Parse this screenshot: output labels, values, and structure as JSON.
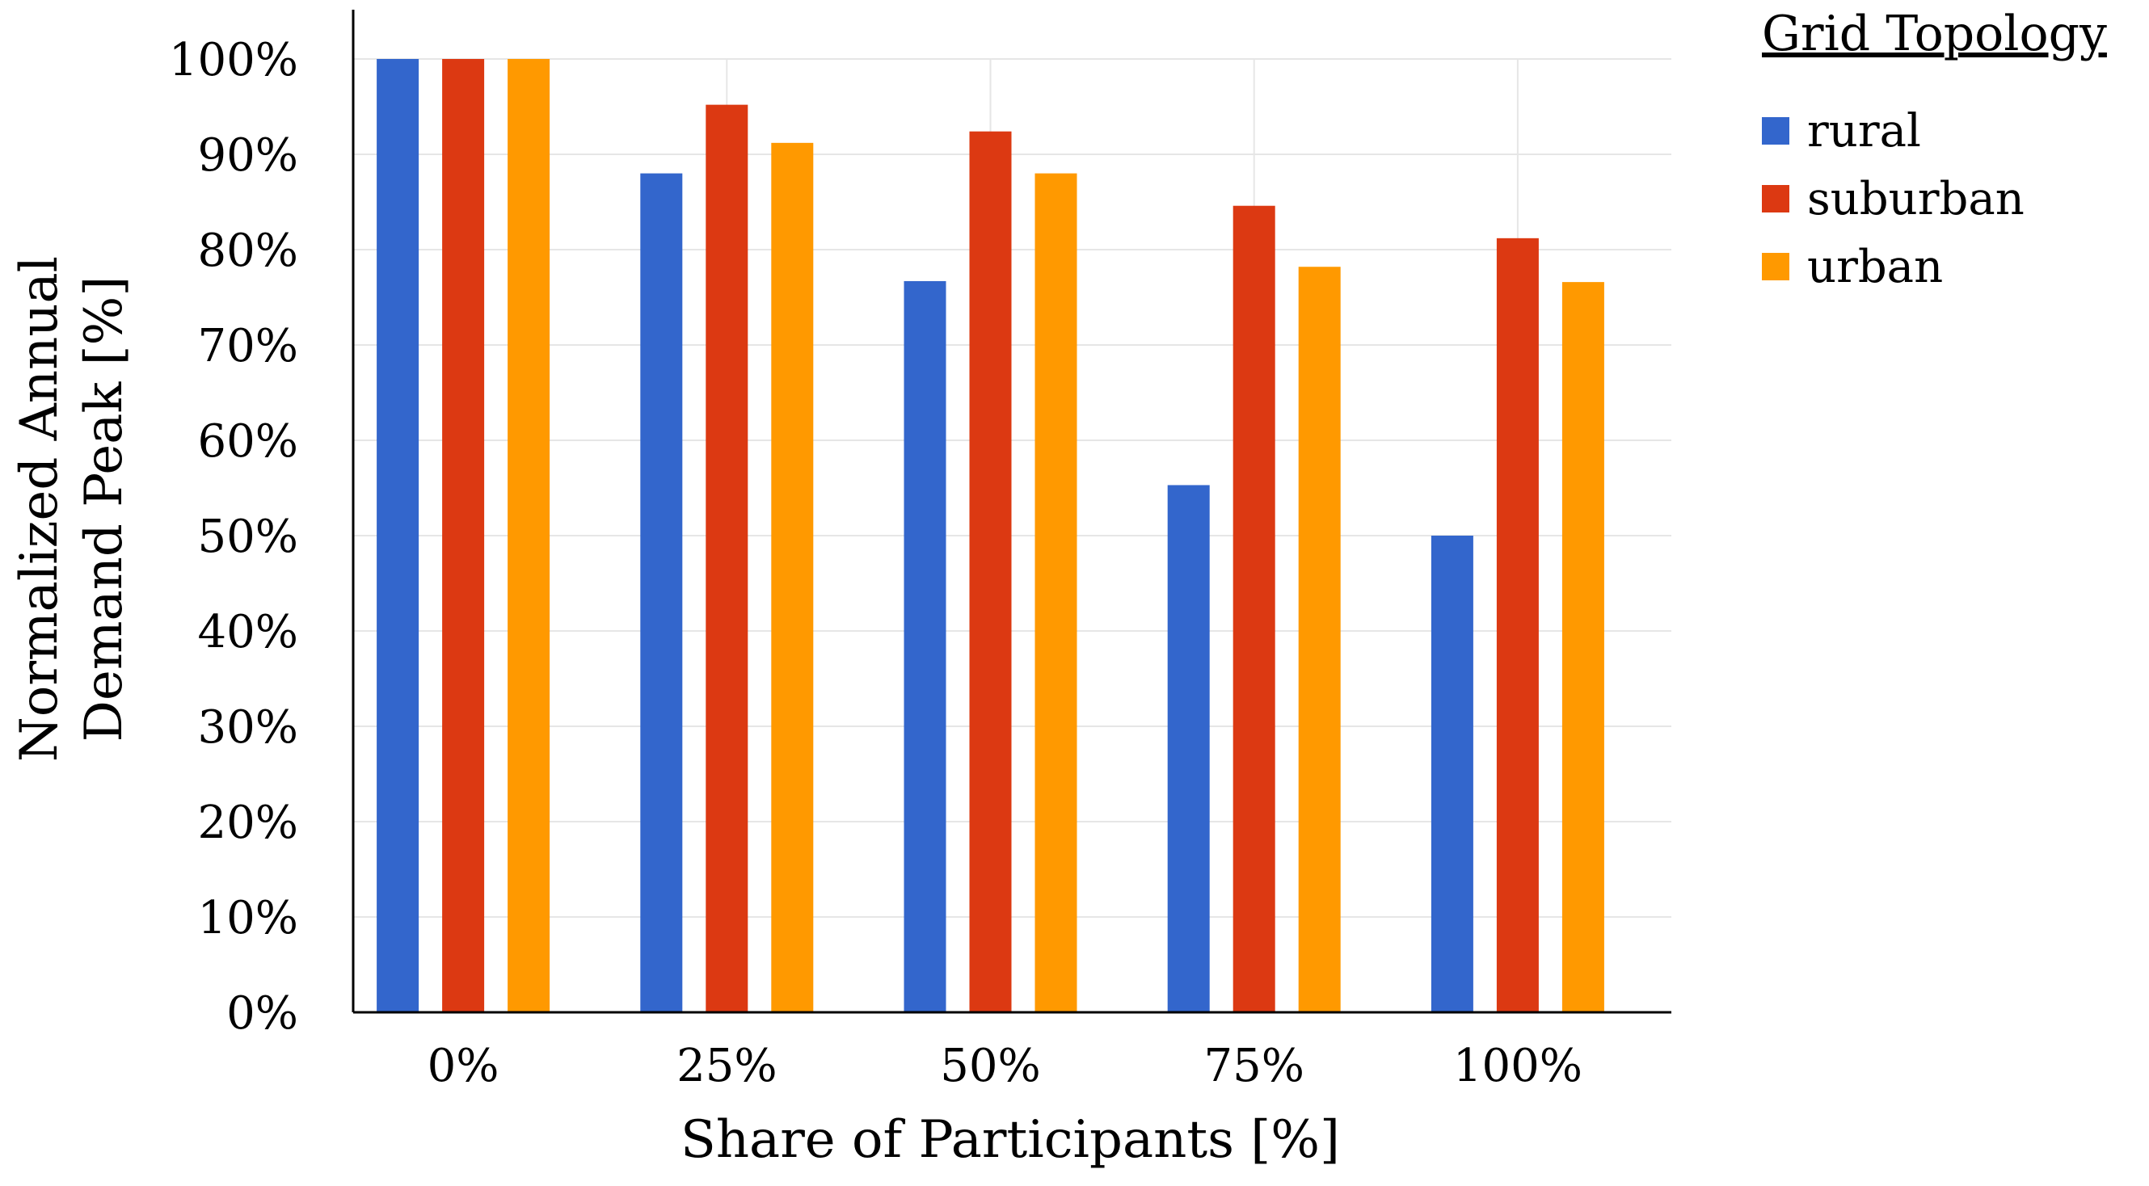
{
  "chart_data": {
    "type": "bar",
    "title": "",
    "xlabel": "Share of Participants [%]",
    "ylabel_lines": [
      "Normalized Annual",
      "Demand Peak [%]"
    ],
    "categories": [
      "0%",
      "25%",
      "50%",
      "75%",
      "100%"
    ],
    "ylim": [
      0,
      100
    ],
    "yticks": [
      0,
      10,
      20,
      30,
      40,
      50,
      60,
      70,
      80,
      90,
      100
    ],
    "ytick_labels": [
      "0%",
      "10%",
      "20%",
      "30%",
      "40%",
      "50%",
      "60%",
      "70%",
      "80%",
      "90%",
      "100%"
    ],
    "grid": true,
    "legend": {
      "title": "Grid Topology",
      "placement": "top-right outside"
    },
    "series": [
      {
        "name": "rural",
        "color": "#3366CC",
        "values": [
          100,
          88,
          76.7,
          55.3,
          50
        ]
      },
      {
        "name": "suburban",
        "color": "#DC3912",
        "values": [
          100,
          95.2,
          92.4,
          84.6,
          81.2
        ]
      },
      {
        "name": "urban",
        "color": "#FF9900",
        "values": [
          100,
          91.2,
          88,
          78.2,
          76.6
        ]
      }
    ]
  }
}
